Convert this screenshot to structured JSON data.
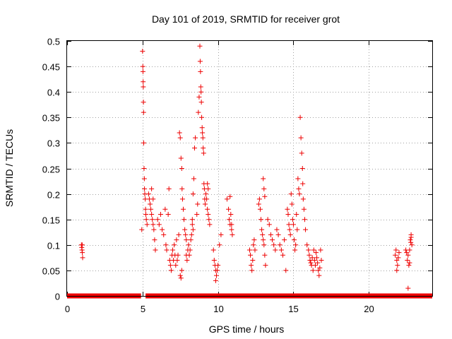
{
  "chart_data": {
    "type": "scatter",
    "title": "Day 101 of 2019, SRMTID for receiver grot",
    "xlabel": "GPS time / hours",
    "ylabel": "SRMTID / TECUs",
    "xlim": [
      0,
      24.2
    ],
    "ylim": [
      0,
      0.5
    ],
    "x_ticks": [
      0,
      5,
      10,
      15,
      20
    ],
    "y_ticks": [
      0,
      0.05,
      0.1,
      0.15,
      0.2,
      0.25,
      0.3,
      0.35,
      0.4,
      0.45,
      0.5
    ],
    "x_tick_labels": [
      "0",
      "5",
      "10",
      "15",
      "20"
    ],
    "y_tick_labels": [
      "0",
      "0.05",
      "0.1",
      "0.15",
      "0.2",
      "0.25",
      "0.3",
      "0.35",
      "0.4",
      "0.45",
      "0.5"
    ],
    "grid": true,
    "legend": "none",
    "marker": "plus",
    "color": "#ee0000",
    "series": [
      {
        "points": [
          [
            0.95,
            0.1
          ],
          [
            0.97,
            0.095
          ],
          [
            0.99,
            0.09
          ],
          [
            1.01,
            0.085
          ],
          [
            1.03,
            0.075
          ],
          [
            1.0,
            0.1
          ],
          [
            4.95,
            0.13
          ],
          [
            5.0,
            0.48
          ],
          [
            5.02,
            0.45
          ],
          [
            5.03,
            0.44
          ],
          [
            5.04,
            0.42
          ],
          [
            5.05,
            0.41
          ],
          [
            5.06,
            0.38
          ],
          [
            5.07,
            0.36
          ],
          [
            5.08,
            0.3
          ],
          [
            5.1,
            0.25
          ],
          [
            5.12,
            0.23
          ],
          [
            5.13,
            0.21
          ],
          [
            5.15,
            0.2
          ],
          [
            5.18,
            0.19
          ],
          [
            5.2,
            0.17
          ],
          [
            5.22,
            0.16
          ],
          [
            5.25,
            0.15
          ],
          [
            5.3,
            0.14
          ],
          [
            5.4,
            0.2
          ],
          [
            5.45,
            0.19
          ],
          [
            5.5,
            0.18
          ],
          [
            5.55,
            0.17
          ],
          [
            5.6,
            0.16
          ],
          [
            5.65,
            0.15
          ],
          [
            5.7,
            0.14
          ],
          [
            5.75,
            0.13
          ],
          [
            5.8,
            0.11
          ],
          [
            5.85,
            0.09
          ],
          [
            5.6,
            0.21
          ],
          [
            5.7,
            0.19
          ],
          [
            6.0,
            0.15
          ],
          [
            6.1,
            0.14
          ],
          [
            6.2,
            0.16
          ],
          [
            6.3,
            0.13
          ],
          [
            6.4,
            0.12
          ],
          [
            6.5,
            0.17
          ],
          [
            6.55,
            0.1
          ],
          [
            6.6,
            0.09
          ],
          [
            6.7,
            0.16
          ],
          [
            6.75,
            0.21
          ],
          [
            6.8,
            0.07
          ],
          [
            6.85,
            0.06
          ],
          [
            6.9,
            0.05
          ],
          [
            6.95,
            0.08
          ],
          [
            7.0,
            0.09
          ],
          [
            7.05,
            0.07
          ],
          [
            7.1,
            0.1
          ],
          [
            7.15,
            0.08
          ],
          [
            7.2,
            0.06
          ],
          [
            7.25,
            0.11
          ],
          [
            7.3,
            0.07
          ],
          [
            7.35,
            0.08
          ],
          [
            7.4,
            0.12
          ],
          [
            7.45,
            0.32
          ],
          [
            7.5,
            0.31
          ],
          [
            7.55,
            0.27
          ],
          [
            7.6,
            0.25
          ],
          [
            7.62,
            0.21
          ],
          [
            7.65,
            0.19
          ],
          [
            7.7,
            0.17
          ],
          [
            7.75,
            0.15
          ],
          [
            7.8,
            0.13
          ],
          [
            7.85,
            0.12
          ],
          [
            7.9,
            0.11
          ],
          [
            7.5,
            0.04
          ],
          [
            7.55,
            0.035
          ],
          [
            7.6,
            0.05
          ],
          [
            7.9,
            0.08
          ],
          [
            7.95,
            0.07
          ],
          [
            8.0,
            0.09
          ],
          [
            8.05,
            0.1
          ],
          [
            8.1,
            0.08
          ],
          [
            8.15,
            0.09
          ],
          [
            8.2,
            0.11
          ],
          [
            8.25,
            0.12
          ],
          [
            8.3,
            0.15
          ],
          [
            8.35,
            0.2
          ],
          [
            8.4,
            0.23
          ],
          [
            8.45,
            0.29
          ],
          [
            8.5,
            0.31
          ],
          [
            8.3,
            0.14
          ],
          [
            8.35,
            0.13
          ],
          [
            8.6,
            0.16
          ],
          [
            8.65,
            0.18
          ],
          [
            8.7,
            0.36
          ],
          [
            8.75,
            0.39
          ],
          [
            8.8,
            0.49
          ],
          [
            8.82,
            0.46
          ],
          [
            8.84,
            0.44
          ],
          [
            8.86,
            0.41
          ],
          [
            8.88,
            0.4
          ],
          [
            8.9,
            0.38
          ],
          [
            8.92,
            0.35
          ],
          [
            8.95,
            0.33
          ],
          [
            8.97,
            0.32
          ],
          [
            9.0,
            0.31
          ],
          [
            9.02,
            0.29
          ],
          [
            9.05,
            0.28
          ],
          [
            9.07,
            0.22
          ],
          [
            9.1,
            0.21
          ],
          [
            9.12,
            0.19
          ],
          [
            9.15,
            0.18
          ],
          [
            9.2,
            0.2
          ],
          [
            9.25,
            0.19
          ],
          [
            9.3,
            0.17
          ],
          [
            9.35,
            0.16
          ],
          [
            9.4,
            0.15
          ],
          [
            9.45,
            0.14
          ],
          [
            9.3,
            0.22
          ],
          [
            9.35,
            0.21
          ],
          [
            9.7,
            0.09
          ],
          [
            9.75,
            0.07
          ],
          [
            9.8,
            0.06
          ],
          [
            9.85,
            0.05
          ],
          [
            9.9,
            0.04
          ],
          [
            9.95,
            0.05
          ],
          [
            10.0,
            0.06
          ],
          [
            9.85,
            0.03
          ],
          [
            10.1,
            0.1
          ],
          [
            10.2,
            0.12
          ],
          [
            10.6,
            0.19
          ],
          [
            10.7,
            0.17
          ],
          [
            10.75,
            0.15
          ],
          [
            10.8,
            0.14
          ],
          [
            10.85,
            0.16
          ],
          [
            10.9,
            0.13
          ],
          [
            10.95,
            0.12
          ],
          [
            10.8,
            0.195
          ],
          [
            10.9,
            0.14
          ],
          [
            12.1,
            0.09
          ],
          [
            12.15,
            0.08
          ],
          [
            12.2,
            0.06
          ],
          [
            12.25,
            0.05
          ],
          [
            12.3,
            0.07
          ],
          [
            12.35,
            0.1
          ],
          [
            12.4,
            0.11
          ],
          [
            12.45,
            0.09
          ],
          [
            12.7,
            0.18
          ],
          [
            12.75,
            0.19
          ],
          [
            12.8,
            0.17
          ],
          [
            12.85,
            0.15
          ],
          [
            12.9,
            0.13
          ],
          [
            12.95,
            0.12
          ],
          [
            13.0,
            0.11
          ],
          [
            13.05,
            0.1
          ],
          [
            13.1,
            0.08
          ],
          [
            13.15,
            0.06
          ],
          [
            13.0,
            0.23
          ],
          [
            13.05,
            0.21
          ],
          [
            13.1,
            0.195
          ],
          [
            13.3,
            0.15
          ],
          [
            13.4,
            0.14
          ],
          [
            13.5,
            0.12
          ],
          [
            13.6,
            0.11
          ],
          [
            13.7,
            0.1
          ],
          [
            13.8,
            0.09
          ],
          [
            13.9,
            0.13
          ],
          [
            14.0,
            0.12
          ],
          [
            14.1,
            0.1
          ],
          [
            14.2,
            0.09
          ],
          [
            14.3,
            0.08
          ],
          [
            14.4,
            0.11
          ],
          [
            14.5,
            0.05
          ],
          [
            14.6,
            0.17
          ],
          [
            14.65,
            0.16
          ],
          [
            14.7,
            0.14
          ],
          [
            14.75,
            0.13
          ],
          [
            14.8,
            0.12
          ],
          [
            14.85,
            0.2
          ],
          [
            14.9,
            0.18
          ],
          [
            14.95,
            0.15
          ],
          [
            15.0,
            0.14
          ],
          [
            15.05,
            0.11
          ],
          [
            15.1,
            0.09
          ],
          [
            15.15,
            0.1
          ],
          [
            15.2,
            0.16
          ],
          [
            15.25,
            0.13
          ],
          [
            15.3,
            0.23
          ],
          [
            15.35,
            0.21
          ],
          [
            15.4,
            0.2
          ],
          [
            15.45,
            0.35
          ],
          [
            15.5,
            0.31
          ],
          [
            15.55,
            0.28
          ],
          [
            15.6,
            0.25
          ],
          [
            15.62,
            0.22
          ],
          [
            15.65,
            0.19
          ],
          [
            15.7,
            0.17
          ],
          [
            15.75,
            0.15
          ],
          [
            15.8,
            0.13
          ],
          [
            15.9,
            0.1
          ],
          [
            16.0,
            0.09
          ],
          [
            16.05,
            0.08
          ],
          [
            16.1,
            0.07
          ],
          [
            16.15,
            0.065
          ],
          [
            16.2,
            0.06
          ],
          [
            16.25,
            0.075
          ],
          [
            16.3,
            0.05
          ],
          [
            16.35,
            0.09
          ],
          [
            16.4,
            0.07
          ],
          [
            16.45,
            0.06
          ],
          [
            16.5,
            0.085
          ],
          [
            16.55,
            0.075
          ],
          [
            16.6,
            0.065
          ],
          [
            16.65,
            0.05
          ],
          [
            16.7,
            0.04
          ],
          [
            16.75,
            0.055
          ],
          [
            16.8,
            0.09
          ],
          [
            16.85,
            0.07
          ],
          [
            21.75,
            0.08
          ],
          [
            21.8,
            0.09
          ],
          [
            21.85,
            0.07
          ],
          [
            21.9,
            0.06
          ],
          [
            21.95,
            0.075
          ],
          [
            22.0,
            0.085
          ],
          [
            21.85,
            0.05
          ],
          [
            22.45,
            0.09
          ],
          [
            22.5,
            0.085
          ],
          [
            22.55,
            0.07
          ],
          [
            22.6,
            0.08
          ],
          [
            22.65,
            0.06
          ],
          [
            22.7,
            0.065
          ],
          [
            22.6,
            0.015
          ],
          [
            22.75,
            0.11
          ],
          [
            22.8,
            0.12
          ],
          [
            22.85,
            0.1
          ],
          [
            22.8,
            0.115
          ],
          [
            22.7,
            0.09
          ],
          [
            22.78,
            0.105
          ]
        ]
      }
    ],
    "baseline_runs": [
      [
        0.0,
        4.9
      ],
      [
        5.2,
        24.2
      ]
    ]
  }
}
